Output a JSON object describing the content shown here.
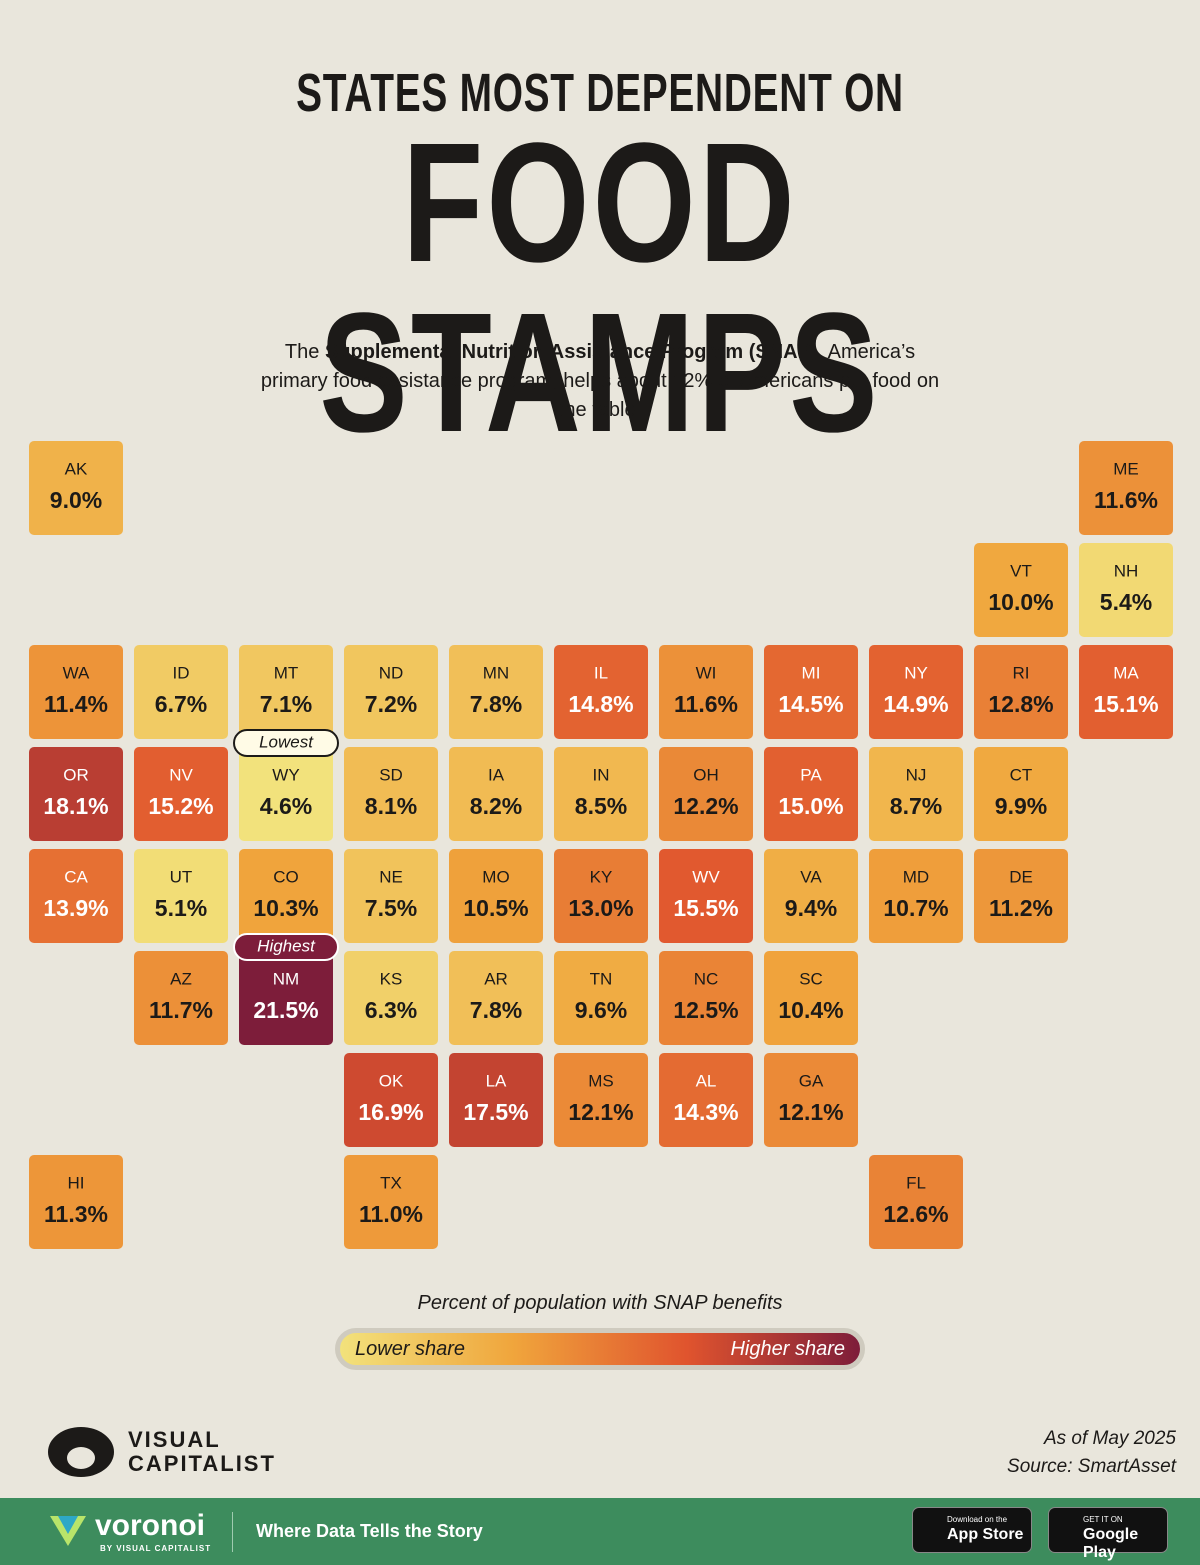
{
  "header": {
    "title_top": "STATES MOST DEPENDENT ON",
    "title_main": "FOOD STAMPS",
    "subtitle_before": "The",
    "subtitle_bold": "Supplemental Nutrition Assistance Program (SNAP)",
    "subtitle_after": ", America’s primary food assistance program, helps about 12% of Americans put food on the table."
  },
  "chart_data": {
    "type": "map",
    "categories": [
      "AK",
      "ME",
      "VT",
      "NH",
      "WA",
      "ID",
      "MT",
      "ND",
      "MN",
      "IL",
      "WI",
      "MI",
      "NY",
      "RI",
      "MA",
      "OR",
      "NV",
      "WY",
      "SD",
      "IA",
      "IN",
      "OH",
      "PA",
      "NJ",
      "CT",
      "CA",
      "UT",
      "CO",
      "NE",
      "MO",
      "KY",
      "WV",
      "VA",
      "MD",
      "DE",
      "AZ",
      "NM",
      "KS",
      "AR",
      "TN",
      "NC",
      "SC",
      "OK",
      "LA",
      "MS",
      "AL",
      "GA",
      "HI",
      "TX",
      "FL"
    ],
    "values": [
      9.0,
      11.6,
      10.0,
      5.4,
      11.4,
      6.7,
      7.1,
      7.2,
      7.8,
      14.8,
      11.6,
      14.5,
      14.9,
      12.8,
      15.1,
      18.1,
      15.2,
      4.6,
      8.1,
      8.2,
      8.5,
      12.2,
      15.0,
      8.7,
      9.9,
      13.9,
      5.1,
      10.3,
      7.5,
      10.5,
      13.0,
      15.5,
      9.4,
      10.7,
      11.2,
      11.7,
      21.5,
      6.3,
      7.8,
      9.6,
      12.5,
      10.4,
      16.9,
      17.5,
      12.1,
      14.3,
      12.1,
      11.3,
      11.0,
      12.6
    ],
    "value_labels": [
      "9.0%",
      "11.6%",
      "10.0%",
      "5.4%",
      "11.4%",
      "6.7%",
      "7.1%",
      "7.2%",
      "7.8%",
      "14.8%",
      "11.6%",
      "14.5%",
      "14.9%",
      "12.8%",
      "15.1%",
      "18.1%",
      "15.2%",
      "4.6%",
      "8.1%",
      "8.2%",
      "8.5%",
      "12.2%",
      "15.0%",
      "8.7%",
      "9.9%",
      "13.9%",
      "5.1%",
      "10.3%",
      "7.5%",
      "10.5%",
      "13.0%",
      "15.5%",
      "9.4%",
      "10.7%",
      "11.2%",
      "11.7%",
      "21.5%",
      "6.3%",
      "7.8%",
      "9.6%",
      "12.5%",
      "10.4%",
      "16.9%",
      "17.5%",
      "12.1%",
      "14.3%",
      "12.1%",
      "11.3%",
      "11.0%",
      "12.6%"
    ],
    "color_scale": [
      "#f2e27c",
      "#f0a53c",
      "#e0542e",
      "#7d1d3a"
    ],
    "lowest_label": "Lowest",
    "highest_label": "Highest",
    "legend_title": "Percent of population with SNAP benefits",
    "legend_low": "Lower share",
    "legend_high": "Higher share"
  },
  "footer": {
    "brand_line1": "VISUAL",
    "brand_line2": "CAPITALIST",
    "as_of": "As of May 2025",
    "source": "Source: SmartAsset",
    "voronoi": "voronoi",
    "voronoi_sub": "BY VISUAL CAPITALIST",
    "tagline": "Where Data Tells the Story",
    "appstore_small": "Download on the",
    "appstore_large": "App Store",
    "googleplay_small": "GET IT ON",
    "googleplay_large": "Google Play"
  }
}
